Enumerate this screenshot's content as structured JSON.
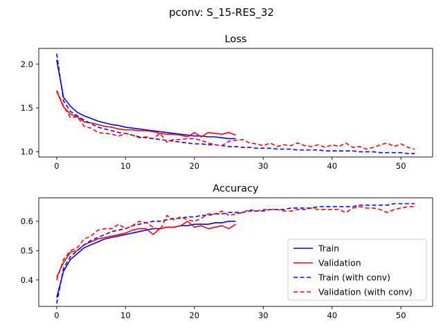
{
  "suptitle": "pconv: S_15-RES_32",
  "chart_data": [
    {
      "type": "line",
      "title": "Loss",
      "xlim": [
        -2.6,
        54.6
      ],
      "ylim": [
        0.94,
        2.18
      ],
      "xticks": [
        0,
        10,
        20,
        30,
        40,
        50
      ],
      "yticks": [
        1.0,
        1.5,
        2.0
      ],
      "ytick_labels": [
        "1.0",
        "1.5",
        "2.0"
      ],
      "legend": null,
      "series": [
        {
          "name": "Train",
          "color": "#0000ff",
          "dash": "solid",
          "x": [
            0,
            1,
            2,
            3,
            4,
            5,
            6,
            7,
            8,
            9,
            10,
            11,
            12,
            13,
            14,
            15,
            16,
            17,
            18,
            19,
            20,
            21,
            22,
            23,
            24,
            25,
            26
          ],
          "y": [
            2.05,
            1.62,
            1.52,
            1.45,
            1.41,
            1.38,
            1.35,
            1.33,
            1.31,
            1.3,
            1.28,
            1.27,
            1.26,
            1.25,
            1.24,
            1.23,
            1.22,
            1.21,
            1.2,
            1.19,
            1.18,
            1.18,
            1.17,
            1.17,
            1.16,
            1.15,
            1.15
          ]
        },
        {
          "name": "Validation",
          "color": "#ff0000",
          "dash": "solid",
          "x": [
            0,
            1,
            2,
            3,
            4,
            5,
            6,
            7,
            8,
            9,
            10,
            11,
            12,
            13,
            14,
            15,
            16,
            17,
            18,
            19,
            20,
            21,
            22,
            23,
            24,
            25,
            26
          ],
          "y": [
            1.69,
            1.51,
            1.43,
            1.4,
            1.34,
            1.33,
            1.31,
            1.29,
            1.28,
            1.26,
            1.25,
            1.25,
            1.24,
            1.24,
            1.23,
            1.21,
            1.2,
            1.2,
            1.19,
            1.17,
            1.22,
            1.17,
            1.22,
            1.21,
            1.2,
            1.22,
            1.19
          ]
        },
        {
          "name": "Train (with conv)",
          "color": "#0000ff",
          "dash": "dashed",
          "x": [
            0,
            1,
            2,
            3,
            4,
            5,
            6,
            7,
            8,
            9,
            10,
            11,
            12,
            13,
            14,
            15,
            16,
            17,
            18,
            19,
            20,
            21,
            22,
            23,
            24,
            25,
            26,
            27,
            28,
            29,
            30,
            31,
            32,
            33,
            34,
            35,
            36,
            37,
            38,
            39,
            40,
            41,
            42,
            43,
            44,
            45,
            46,
            47,
            48,
            49,
            50,
            51,
            52
          ],
          "y": [
            2.12,
            1.58,
            1.46,
            1.41,
            1.36,
            1.32,
            1.28,
            1.26,
            1.24,
            1.22,
            1.21,
            1.19,
            1.17,
            1.16,
            1.15,
            1.14,
            1.13,
            1.12,
            1.11,
            1.1,
            1.09,
            1.09,
            1.08,
            1.08,
            1.07,
            1.06,
            1.06,
            1.05,
            1.05,
            1.04,
            1.04,
            1.04,
            1.03,
            1.03,
            1.03,
            1.02,
            1.02,
            1.02,
            1.02,
            1.01,
            1.01,
            1.01,
            1.01,
            1.01,
            1.0,
            1.0,
            1.0,
            0.99,
            0.99,
            0.99,
            0.99,
            0.98,
            0.98
          ]
        },
        {
          "name": "Validation (with conv)",
          "color": "#ff0000",
          "dash": "dashed",
          "x": [
            0,
            1,
            2,
            3,
            4,
            5,
            6,
            7,
            8,
            9,
            10,
            11,
            12,
            13,
            14,
            15,
            16,
            17,
            18,
            19,
            20,
            21,
            22,
            23,
            24,
            25,
            26,
            27,
            28,
            29,
            30,
            31,
            32,
            33,
            34,
            35,
            36,
            37,
            38,
            39,
            40,
            41,
            42,
            43,
            44,
            45,
            46,
            47,
            48,
            49,
            50,
            51,
            52
          ],
          "y": [
            1.7,
            1.52,
            1.39,
            1.4,
            1.29,
            1.27,
            1.22,
            1.21,
            1.2,
            1.18,
            1.21,
            1.19,
            1.16,
            1.17,
            1.15,
            1.21,
            1.11,
            1.14,
            1.14,
            1.15,
            1.15,
            1.13,
            1.1,
            1.08,
            1.07,
            1.12,
            1.13,
            1.14,
            1.1,
            1.09,
            1.07,
            1.1,
            1.06,
            1.08,
            1.07,
            1.1,
            1.07,
            1.06,
            1.08,
            1.05,
            1.08,
            1.06,
            1.1,
            1.05,
            1.06,
            1.03,
            1.05,
            1.08,
            1.1,
            1.06,
            1.09,
            1.05,
            1.03
          ]
        }
      ]
    },
    {
      "type": "line",
      "title": "Accuracy",
      "xlim": [
        -2.6,
        54.6
      ],
      "ylim": [
        0.31,
        0.68
      ],
      "xticks": [
        0,
        10,
        20,
        30,
        40,
        50
      ],
      "yticks": [
        0.4,
        0.5,
        0.6
      ],
      "ytick_labels": [
        "0.4",
        "0.5",
        "0.6"
      ],
      "legend": "lower-right",
      "series": [
        {
          "name": "Train",
          "color": "#0000ff",
          "dash": "solid",
          "x": [
            0,
            1,
            2,
            3,
            4,
            5,
            6,
            7,
            8,
            9,
            10,
            11,
            12,
            13,
            14,
            15,
            16,
            17,
            18,
            19,
            20,
            21,
            22,
            23,
            24,
            25,
            26
          ],
          "y": [
            0.34,
            0.43,
            0.47,
            0.49,
            0.51,
            0.52,
            0.53,
            0.54,
            0.545,
            0.55,
            0.555,
            0.56,
            0.565,
            0.57,
            0.575,
            0.575,
            0.58,
            0.58,
            0.585,
            0.585,
            0.59,
            0.59,
            0.59,
            0.595,
            0.595,
            0.6,
            0.6
          ]
        },
        {
          "name": "Validation",
          "color": "#ff0000",
          "dash": "solid",
          "x": [
            0,
            1,
            2,
            3,
            4,
            5,
            6,
            7,
            8,
            9,
            10,
            11,
            12,
            13,
            14,
            15,
            16,
            17,
            18,
            19,
            20,
            21,
            22,
            23,
            24,
            25,
            26
          ],
          "y": [
            0.41,
            0.46,
            0.495,
            0.5,
            0.52,
            0.53,
            0.54,
            0.545,
            0.55,
            0.555,
            0.56,
            0.57,
            0.575,
            0.575,
            0.555,
            0.575,
            0.58,
            0.58,
            0.585,
            0.6,
            0.58,
            0.585,
            0.575,
            0.58,
            0.585,
            0.575,
            0.59
          ]
        },
        {
          "name": "Train (with conv)",
          "color": "#0000ff",
          "dash": "dashed",
          "x": [
            0,
            1,
            2,
            3,
            4,
            5,
            6,
            7,
            8,
            9,
            10,
            11,
            12,
            13,
            14,
            15,
            16,
            17,
            18,
            19,
            20,
            21,
            22,
            23,
            24,
            25,
            26,
            27,
            28,
            29,
            30,
            31,
            32,
            33,
            34,
            35,
            36,
            37,
            38,
            39,
            40,
            41,
            42,
            43,
            44,
            45,
            46,
            47,
            48,
            49,
            50,
            51,
            52
          ],
          "y": [
            0.32,
            0.44,
            0.48,
            0.5,
            0.52,
            0.535,
            0.545,
            0.555,
            0.565,
            0.57,
            0.575,
            0.585,
            0.59,
            0.595,
            0.6,
            0.6,
            0.605,
            0.61,
            0.61,
            0.615,
            0.615,
            0.62,
            0.62,
            0.625,
            0.625,
            0.63,
            0.63,
            0.63,
            0.635,
            0.635,
            0.635,
            0.64,
            0.64,
            0.64,
            0.645,
            0.645,
            0.645,
            0.645,
            0.65,
            0.65,
            0.65,
            0.65,
            0.65,
            0.65,
            0.655,
            0.655,
            0.655,
            0.655,
            0.655,
            0.66,
            0.66,
            0.66,
            0.66
          ]
        },
        {
          "name": "Validation (with conv)",
          "color": "#ff0000",
          "dash": "dashed",
          "x": [
            0,
            1,
            2,
            3,
            4,
            5,
            6,
            7,
            8,
            9,
            10,
            11,
            12,
            13,
            14,
            15,
            16,
            17,
            18,
            19,
            20,
            21,
            22,
            23,
            24,
            25,
            26,
            27,
            28,
            29,
            30,
            31,
            32,
            33,
            34,
            35,
            36,
            37,
            38,
            39,
            40,
            41,
            42,
            43,
            44,
            45,
            46,
            47,
            48,
            49,
            50,
            51,
            52
          ],
          "y": [
            0.4,
            0.47,
            0.5,
            0.51,
            0.54,
            0.55,
            0.57,
            0.575,
            0.575,
            0.59,
            0.575,
            0.585,
            0.6,
            0.595,
            0.58,
            0.57,
            0.62,
            0.605,
            0.615,
            0.605,
            0.6,
            0.61,
            0.625,
            0.625,
            0.635,
            0.62,
            0.625,
            0.63,
            0.64,
            0.635,
            0.64,
            0.64,
            0.64,
            0.635,
            0.635,
            0.64,
            0.64,
            0.645,
            0.64,
            0.64,
            0.64,
            0.64,
            0.63,
            0.645,
            0.65,
            0.645,
            0.645,
            0.64,
            0.63,
            0.64,
            0.645,
            0.65,
            0.65
          ]
        }
      ]
    }
  ]
}
